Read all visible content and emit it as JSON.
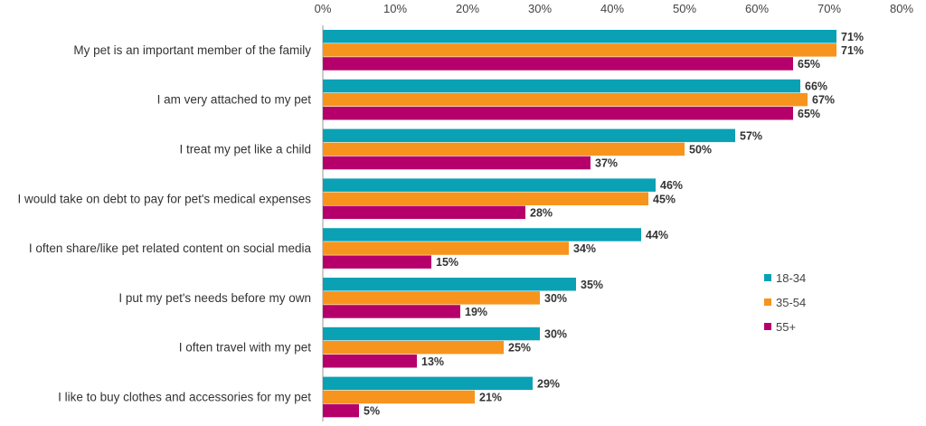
{
  "chart_data": {
    "type": "bar",
    "orientation": "horizontal",
    "title": "",
    "xlabel": "",
    "ylabel": "",
    "xlim": [
      0,
      80
    ],
    "x_ticks": [
      "0%",
      "10%",
      "20%",
      "30%",
      "40%",
      "50%",
      "60%",
      "70%",
      "80%"
    ],
    "grid": false,
    "legend_position": "right",
    "categories": [
      "My pet is an important member of the family",
      "I am very attached to my pet",
      "I treat my pet like a child",
      "I would take on debt to pay for pet's medical expenses",
      "I often share/like pet related content on social media",
      "I put my pet's needs before my own",
      "I often travel with my pet",
      "I like to buy clothes and accessories for my pet"
    ],
    "series": [
      {
        "name": "18-34",
        "color": "#0aa1b5",
        "values": [
          71,
          66,
          57,
          46,
          44,
          35,
          30,
          29
        ]
      },
      {
        "name": "35-54",
        "color": "#f7941d",
        "values": [
          71,
          67,
          50,
          45,
          34,
          30,
          25,
          21
        ]
      },
      {
        "name": "55+",
        "color": "#b5006b",
        "values": [
          65,
          65,
          37,
          28,
          15,
          19,
          13,
          5
        ]
      }
    ],
    "value_suffix": "%"
  }
}
